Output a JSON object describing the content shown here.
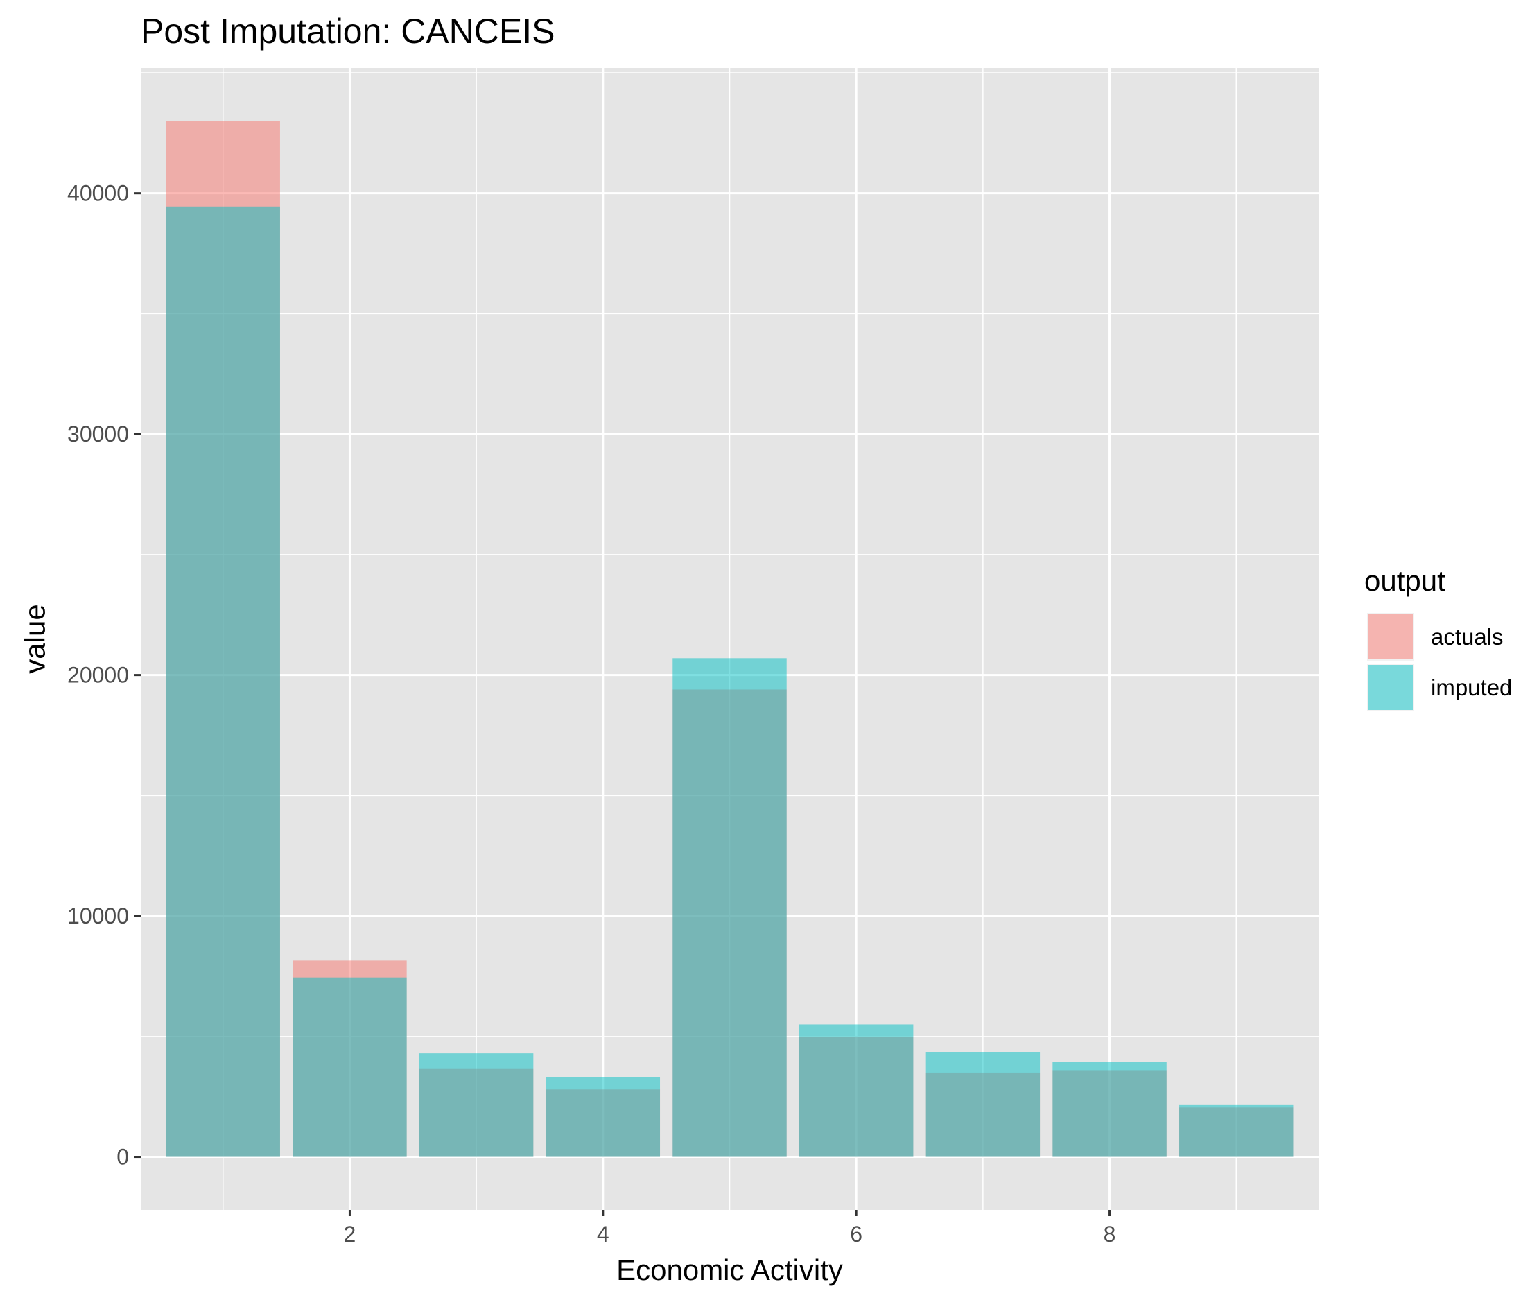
{
  "chart_data": {
    "type": "bar",
    "title": "Post Imputation: CANCEIS",
    "xlabel": "Economic Activity",
    "ylabel": "value",
    "x": [
      1,
      2,
      3,
      4,
      5,
      6,
      7,
      8,
      9
    ],
    "series": [
      {
        "name": "actuals",
        "values": [
          43000,
          8150,
          3650,
          2800,
          19400,
          5000,
          3500,
          3600,
          2050
        ],
        "color": "#F8766D"
      },
      {
        "name": "imputed",
        "values": [
          39450,
          7450,
          4300,
          3300,
          20700,
          5500,
          4350,
          3950,
          2150
        ],
        "color": "#00BFC4"
      }
    ],
    "xlim": [
      0.35,
      9.65
    ],
    "ylim": [
      -2200,
      45200
    ],
    "x_ticks": [
      2,
      4,
      6,
      8
    ],
    "x_tick_labels": [
      "2",
      "4",
      "6",
      "8"
    ],
    "y_ticks": [
      0,
      10000,
      20000,
      30000,
      40000
    ],
    "y_tick_labels": [
      "0",
      "10000",
      "20000",
      "30000",
      "40000"
    ],
    "bar_opacity": 0.5,
    "grid": true,
    "legend": {
      "title": "output",
      "position": "right"
    },
    "panel_background": "#E5E5E5",
    "grid_color": "#FFFFFF"
  }
}
